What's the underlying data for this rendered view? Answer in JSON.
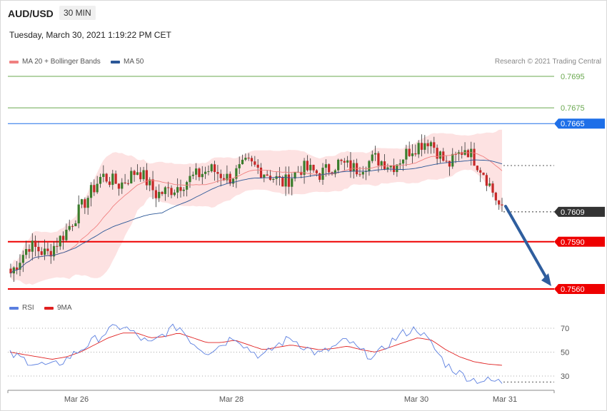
{
  "header": {
    "symbol": "AUD/USD",
    "timeframe": "30 MIN",
    "timestamp": "Tuesday, March 30, 2021 1:19:22 PM CET",
    "credit": "Research © 2021 Trading Central"
  },
  "legend_main": [
    {
      "label": "MA 20 + Bollinger Bands",
      "color": "#f08080"
    },
    {
      "label": "MA 50",
      "color": "#2b5797"
    }
  ],
  "legend_rsi": [
    {
      "label": "RSI",
      "color": "#5b7fe0"
    },
    {
      "label": "9MA",
      "color": "#e02020"
    }
  ],
  "chart_data": [
    {
      "type": "candlestick",
      "title": "AUD/USD 30 MIN",
      "x_ticks": [
        "Mar 26",
        "Mar 28",
        "Mar 30",
        "Mar 31"
      ],
      "price_levels": [
        {
          "value": 0.7695,
          "label": "0.7695",
          "kind": "target",
          "color": "#6aa84f"
        },
        {
          "value": 0.7675,
          "label": "0.7675",
          "kind": "target",
          "color": "#6aa84f"
        },
        {
          "value": 0.7665,
          "label": "0.7665",
          "kind": "pivot",
          "color": "#1e6fe8"
        },
        {
          "value": 0.7609,
          "label": "0.7609",
          "kind": "last-price",
          "color": "#333333"
        },
        {
          "value": 0.759,
          "label": "0.7590",
          "kind": "support",
          "color": "#ee0000"
        },
        {
          "value": 0.756,
          "label": "0.7560",
          "kind": "support",
          "color": "#ee0000"
        }
      ],
      "projection": {
        "from": 0.7608,
        "to": 0.756,
        "direction": "down"
      },
      "ylim": [
        0.7555,
        0.77
      ],
      "close_path": [
        0.757,
        0.7588,
        0.7582,
        0.7596,
        0.7614,
        0.7632,
        0.7626,
        0.7636,
        0.762,
        0.7624,
        0.7631,
        0.7636,
        0.763,
        0.764,
        0.7634,
        0.7627,
        0.7637,
        0.7633,
        0.764,
        0.7636,
        0.7643,
        0.7638,
        0.7649,
        0.7655,
        0.7638,
        0.765,
        0.7634,
        0.7609
      ]
    },
    {
      "type": "line",
      "title": "RSI",
      "ylim": [
        20,
        80
      ],
      "levels": [
        70,
        50,
        30
      ],
      "series": [
        {
          "name": "RSI",
          "values": [
            48,
            44,
            40,
            38,
            44,
            52,
            60,
            68,
            72,
            64,
            56,
            66,
            72,
            58,
            50,
            56,
            64,
            52,
            46,
            56,
            62,
            54,
            48,
            54,
            60,
            50,
            46,
            58,
            66,
            70,
            56,
            40,
            32,
            27,
            26,
            25
          ]
        },
        {
          "name": "9MA",
          "values": [
            50,
            48,
            46,
            44,
            46,
            50,
            56,
            62,
            66,
            66,
            62,
            63,
            66,
            62,
            58,
            58,
            60,
            56,
            52,
            54,
            56,
            54,
            52,
            53,
            55,
            52,
            50,
            54,
            58,
            62,
            60,
            52,
            46,
            42,
            40,
            39
          ]
        }
      ]
    }
  ]
}
